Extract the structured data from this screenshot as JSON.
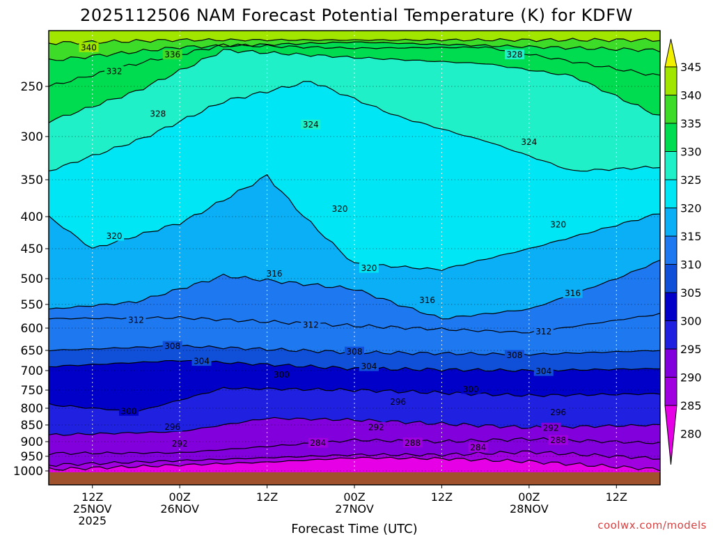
{
  "chart_data": {
    "type": "contour-cross-section",
    "title": "2025112506 NAM Forecast Potential Temperature (K) for KDFW",
    "xlabel": "Forecast Time (UTC)",
    "ylabel": "",
    "credit": "coolwx.com/models",
    "units": "K",
    "y_axis": {
      "variable": "pressure_hPa",
      "range": [
        1000,
        200
      ],
      "ticks": [
        "250",
        "300",
        "350",
        "400",
        "450",
        "500",
        "550",
        "600",
        "650",
        "700",
        "750",
        "800",
        "850",
        "900",
        "950",
        "1000"
      ]
    },
    "x_axis": {
      "variable": "forecast_hour",
      "range": [
        0,
        84
      ],
      "ticks": [
        {
          "hour": 6,
          "label1": "12Z",
          "label2": "25NOV",
          "label3": "2025"
        },
        {
          "hour": 18,
          "label1": "00Z",
          "label2": "26NOV",
          "label3": ""
        },
        {
          "hour": 30,
          "label1": "12Z",
          "label2": "",
          "label3": ""
        },
        {
          "hour": 42,
          "label1": "00Z",
          "label2": "27NOV",
          "label3": ""
        },
        {
          "hour": 54,
          "label1": "12Z",
          "label2": "",
          "label3": ""
        },
        {
          "hour": 66,
          "label1": "00Z",
          "label2": "28NOV",
          "label3": ""
        },
        {
          "hour": 78,
          "label1": "12Z",
          "label2": "",
          "label3": ""
        }
      ]
    },
    "colorbar": {
      "labels": [
        "345",
        "340",
        "335",
        "330",
        "325",
        "320",
        "315",
        "310",
        "305",
        "300",
        "295",
        "290",
        "285",
        "280"
      ],
      "bins": [
        {
          "theta": 280,
          "color": "#e600e6"
        },
        {
          "theta": 285,
          "color": "#a000e0"
        },
        {
          "theta": 290,
          "color": "#8200dc"
        },
        {
          "theta": 295,
          "color": "#2020e0"
        },
        {
          "theta": 300,
          "color": "#0000c8"
        },
        {
          "theta": 305,
          "color": "#1050d8"
        },
        {
          "theta": 310,
          "color": "#1e78f0"
        },
        {
          "theta": 315,
          "color": "#0aaff5"
        },
        {
          "theta": 320,
          "color": "#00e6f5"
        },
        {
          "theta": 325,
          "color": "#20f0c8"
        },
        {
          "theta": 330,
          "color": "#00dc50"
        },
        {
          "theta": 335,
          "color": "#3cdc28"
        },
        {
          "theta": 340,
          "color": "#a0e600"
        },
        {
          "theta": 345,
          "color": "#f0f000"
        }
      ]
    },
    "isentropes": [
      {
        "theta": 284,
        "pressure_by_hour": [
          {
            "hour": 0,
            "p": 995
          },
          {
            "hour": 30,
            "p": 970
          },
          {
            "hour": 42,
            "p": 955
          },
          {
            "hour": 54,
            "p": 958
          },
          {
            "hour": 66,
            "p": 968
          },
          {
            "hour": 84,
            "p": 995
          }
        ]
      },
      {
        "theta": 288,
        "pressure_by_hour": [
          {
            "hour": 0,
            "p": 980
          },
          {
            "hour": 30,
            "p": 955
          },
          {
            "hour": 42,
            "p": 945
          },
          {
            "hour": 54,
            "p": 945
          },
          {
            "hour": 66,
            "p": 935
          },
          {
            "hour": 84,
            "p": 958
          }
        ]
      },
      {
        "theta": 292,
        "pressure_by_hour": [
          {
            "hour": 0,
            "p": 940
          },
          {
            "hour": 18,
            "p": 938
          },
          {
            "hour": 42,
            "p": 895
          },
          {
            "hour": 54,
            "p": 900
          },
          {
            "hour": 66,
            "p": 892
          },
          {
            "hour": 84,
            "p": 905
          }
        ]
      },
      {
        "theta": 296,
        "pressure_by_hour": [
          {
            "hour": 0,
            "p": 880
          },
          {
            "hour": 18,
            "p": 870
          },
          {
            "hour": 30,
            "p": 830
          },
          {
            "hour": 42,
            "p": 835
          },
          {
            "hour": 66,
            "p": 858
          },
          {
            "hour": 84,
            "p": 850
          }
        ]
      },
      {
        "theta": 300,
        "pressure_by_hour": [
          {
            "hour": 0,
            "p": 790
          },
          {
            "hour": 12,
            "p": 810
          },
          {
            "hour": 24,
            "p": 745
          },
          {
            "hour": 42,
            "p": 750
          },
          {
            "hour": 66,
            "p": 765
          },
          {
            "hour": 84,
            "p": 760
          }
        ]
      },
      {
        "theta": 304,
        "pressure_by_hour": [
          {
            "hour": 0,
            "p": 690
          },
          {
            "hour": 18,
            "p": 675
          },
          {
            "hour": 42,
            "p": 695
          },
          {
            "hour": 66,
            "p": 700
          },
          {
            "hour": 84,
            "p": 695
          }
        ]
      },
      {
        "theta": 308,
        "pressure_by_hour": [
          {
            "hour": 0,
            "p": 650
          },
          {
            "hour": 18,
            "p": 640
          },
          {
            "hour": 42,
            "p": 655
          },
          {
            "hour": 66,
            "p": 660
          },
          {
            "hour": 84,
            "p": 650
          }
        ]
      },
      {
        "theta": 312,
        "pressure_by_hour": [
          {
            "hour": 0,
            "p": 580
          },
          {
            "hour": 18,
            "p": 578
          },
          {
            "hour": 42,
            "p": 595
          },
          {
            "hour": 66,
            "p": 610
          },
          {
            "hour": 84,
            "p": 570
          }
        ]
      },
      {
        "theta": 316,
        "pressure_by_hour": [
          {
            "hour": 0,
            "p": 560
          },
          {
            "hour": 12,
            "p": 545
          },
          {
            "hour": 24,
            "p": 495
          },
          {
            "hour": 42,
            "p": 520
          },
          {
            "hour": 54,
            "p": 580
          },
          {
            "hour": 66,
            "p": 560
          },
          {
            "hour": 84,
            "p": 470
          }
        ]
      },
      {
        "theta": 320,
        "pressure_by_hour": [
          {
            "hour": 0,
            "p": 400
          },
          {
            "hour": 6,
            "p": 450
          },
          {
            "hour": 18,
            "p": 410
          },
          {
            "hour": 30,
            "p": 345
          },
          {
            "hour": 42,
            "p": 475
          },
          {
            "hour": 54,
            "p": 485
          },
          {
            "hour": 66,
            "p": 450
          },
          {
            "hour": 84,
            "p": 395
          }
        ]
      },
      {
        "theta": 324,
        "pressure_by_hour": [
          {
            "hour": 0,
            "p": 340
          },
          {
            "hour": 12,
            "p": 305
          },
          {
            "hour": 24,
            "p": 265
          },
          {
            "hour": 36,
            "p": 245
          },
          {
            "hour": 48,
            "p": 280
          },
          {
            "hour": 60,
            "p": 305
          },
          {
            "hour": 72,
            "p": 340
          },
          {
            "hour": 84,
            "p": 335
          }
        ]
      },
      {
        "theta": 328,
        "pressure_by_hour": [
          {
            "hour": 0,
            "p": 285
          },
          {
            "hour": 12,
            "p": 255
          },
          {
            "hour": 24,
            "p": 215
          },
          {
            "hour": 42,
            "p": 222
          },
          {
            "hour": 60,
            "p": 228
          },
          {
            "hour": 72,
            "p": 240
          },
          {
            "hour": 84,
            "p": 280
          }
        ]
      },
      {
        "theta": 332,
        "pressure_by_hour": [
          {
            "hour": 0,
            "p": 250
          },
          {
            "hour": 12,
            "p": 228
          },
          {
            "hour": 24,
            "p": 210
          },
          {
            "hour": 42,
            "p": 213
          },
          {
            "hour": 60,
            "p": 212
          },
          {
            "hour": 84,
            "p": 240
          }
        ]
      },
      {
        "theta": 336,
        "pressure_by_hour": [
          {
            "hour": 0,
            "p": 225
          },
          {
            "hour": 18,
            "p": 212
          },
          {
            "hour": 42,
            "p": 207
          },
          {
            "hour": 84,
            "p": 215
          }
        ]
      },
      {
        "theta": 340,
        "pressure_by_hour": [
          {
            "hour": 0,
            "p": 208
          },
          {
            "hour": 18,
            "p": 205
          },
          {
            "hour": 84,
            "p": 205
          }
        ]
      }
    ],
    "contour_labels": [
      {
        "text": "340",
        "hour": 5.5,
        "p": 212
      },
      {
        "text": "336",
        "hour": 17,
        "p": 219
      },
      {
        "text": "332",
        "hour": 9,
        "p": 235
      },
      {
        "text": "328",
        "hour": 15,
        "p": 277
      },
      {
        "text": "328",
        "hour": 64,
        "p": 219
      },
      {
        "text": "324",
        "hour": 36,
        "p": 288
      },
      {
        "text": "324",
        "hour": 66,
        "p": 306
      },
      {
        "text": "320",
        "hour": 9,
        "p": 430
      },
      {
        "text": "320",
        "hour": 40,
        "p": 389
      },
      {
        "text": "320",
        "hour": 44,
        "p": 482
      },
      {
        "text": "320",
        "hour": 70,
        "p": 412
      },
      {
        "text": "316",
        "hour": 31,
        "p": 491
      },
      {
        "text": "316",
        "hour": 52,
        "p": 541
      },
      {
        "text": "316",
        "hour": 72,
        "p": 528
      },
      {
        "text": "312",
        "hour": 12,
        "p": 582
      },
      {
        "text": "312",
        "hour": 36,
        "p": 593
      },
      {
        "text": "312",
        "hour": 68,
        "p": 607
      },
      {
        "text": "308",
        "hour": 17,
        "p": 640
      },
      {
        "text": "308",
        "hour": 42,
        "p": 653
      },
      {
        "text": "308",
        "hour": 64,
        "p": 661
      },
      {
        "text": "304",
        "hour": 21,
        "p": 676
      },
      {
        "text": "304",
        "hour": 44,
        "p": 689
      },
      {
        "text": "304",
        "hour": 68,
        "p": 701
      },
      {
        "text": "300",
        "hour": 32,
        "p": 710
      },
      {
        "text": "300",
        "hour": 58,
        "p": 747
      },
      {
        "text": "300",
        "hour": 11,
        "p": 808
      },
      {
        "text": "296",
        "hour": 48,
        "p": 782
      },
      {
        "text": "296",
        "hour": 70,
        "p": 811
      },
      {
        "text": "296",
        "hour": 17,
        "p": 855
      },
      {
        "text": "292",
        "hour": 45,
        "p": 856
      },
      {
        "text": "292",
        "hour": 69,
        "p": 858
      },
      {
        "text": "292",
        "hour": 18,
        "p": 906
      },
      {
        "text": "288",
        "hour": 50,
        "p": 903
      },
      {
        "text": "288",
        "hour": 70,
        "p": 895
      },
      {
        "text": "284",
        "hour": 37,
        "p": 904
      },
      {
        "text": "284",
        "hour": 59,
        "p": 919
      }
    ]
  }
}
